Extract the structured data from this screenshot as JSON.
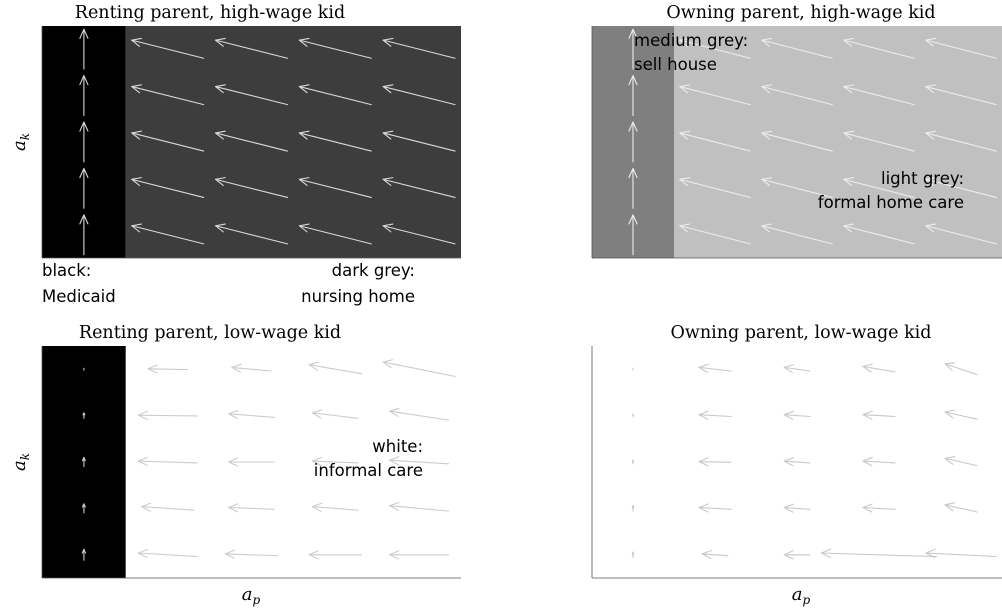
{
  "chart_data": [
    {
      "type": "quiver",
      "title": "Renting parent, high-wage kid",
      "xlabel": "",
      "ylabel": "a_k",
      "ylabel_main": "a",
      "ylabel_sub": "k",
      "regions": [
        {
          "x_from": 0,
          "x_to": 1,
          "color": "#000000"
        },
        {
          "x_from": 1,
          "x_to": 5,
          "color": "#3d3d3d"
        }
      ],
      "arrow_color": "#d9d9d9",
      "columns": [
        0.5,
        1.5,
        2.5,
        3.5,
        4.5,
        5.5
      ],
      "rows": [
        0.5,
        1.5,
        2.5,
        3.5,
        4.5
      ],
      "vectors": [
        [
          [
            0,
            1.1
          ],
          [
            -1.1,
            0.5
          ],
          [
            -1.1,
            0.5
          ],
          [
            -1.1,
            0.5
          ],
          [
            -1.1,
            0.5
          ],
          [
            -0.4,
            0.2
          ]
        ],
        [
          [
            0,
            1.1
          ],
          [
            -1.1,
            0.5
          ],
          [
            -1.1,
            0.5
          ],
          [
            -1.1,
            0.5
          ],
          [
            -1.1,
            0.5
          ],
          [
            -0.4,
            0.2
          ]
        ],
        [
          [
            0,
            1.1
          ],
          [
            -1.1,
            0.5
          ],
          [
            -1.1,
            0.5
          ],
          [
            -1.1,
            0.5
          ],
          [
            -1.1,
            0.5
          ],
          [
            -0.4,
            0.2
          ]
        ],
        [
          [
            0,
            1.1
          ],
          [
            -1.1,
            0.5
          ],
          [
            -1.1,
            0.5
          ],
          [
            -1.1,
            0.5
          ],
          [
            -1.1,
            0.5
          ],
          [
            -0.4,
            0.2
          ]
        ],
        [
          [
            0,
            1.1
          ],
          [
            -1.1,
            0.5
          ],
          [
            -1.1,
            0.5
          ],
          [
            -1.1,
            0.5
          ],
          [
            -1.1,
            0.5
          ],
          [
            -0.4,
            0.2
          ]
        ]
      ],
      "xlim": [
        0,
        5
      ],
      "ylim": [
        0,
        5
      ],
      "grid": false
    },
    {
      "type": "quiver",
      "title": "Owning parent, high-wage kid",
      "xlabel": "",
      "ylabel": "",
      "regions": [
        {
          "x_from": 0,
          "x_to": 1,
          "color": "#7f7f7f"
        },
        {
          "x_from": 1,
          "x_to": 5,
          "color": "#c0c0c0"
        }
      ],
      "arrow_color": "#ececec",
      "columns": [
        0.5,
        1.5,
        2.5,
        3.5,
        4.5,
        5.5
      ],
      "rows": [
        0.5,
        1.5,
        2.5,
        3.5,
        4.5
      ],
      "vectors": [
        [
          [
            0,
            1.1
          ],
          [
            -1.1,
            0.5
          ],
          [
            -1.1,
            0.5
          ],
          [
            -1.1,
            0.5
          ],
          [
            -1.1,
            0.5
          ],
          [
            -0.4,
            0.2
          ]
        ],
        [
          [
            0,
            1.1
          ],
          [
            -1.1,
            0.5
          ],
          [
            -1.1,
            0.5
          ],
          [
            -1.1,
            0.5
          ],
          [
            -1.1,
            0.5
          ],
          [
            -0.4,
            0.2
          ]
        ],
        [
          [
            0,
            1.1
          ],
          [
            -1.1,
            0.5
          ],
          [
            -1.1,
            0.5
          ],
          [
            -1.1,
            0.5
          ],
          [
            -1.1,
            0.5
          ],
          [
            -0.4,
            0.2
          ]
        ],
        [
          [
            0,
            1.1
          ],
          [
            -1.1,
            0.5
          ],
          [
            -1.1,
            0.5
          ],
          [
            -1.1,
            0.5
          ],
          [
            -1.1,
            0.5
          ],
          [
            -0.4,
            0.2
          ]
        ],
        [
          [
            0,
            1.1
          ],
          [
            -1.1,
            0.5
          ],
          [
            -1.1,
            0.5
          ],
          [
            -1.1,
            0.5
          ],
          [
            -1.1,
            0.5
          ],
          [
            -0.4,
            0.2
          ]
        ]
      ],
      "annotations": [
        {
          "lines": [
            "medium grey:",
            "sell house"
          ],
          "color": "#000000",
          "anchor": "start",
          "position": "top-left"
        },
        {
          "lines": [
            "light grey:",
            "formal home care"
          ],
          "color": "#000000",
          "anchor": "end",
          "position": "right"
        }
      ],
      "xlim": [
        0,
        5
      ],
      "ylim": [
        0,
        5
      ],
      "grid": false
    },
    {
      "type": "quiver",
      "title": "Renting parent, low-wage kid",
      "xlabel": "a_p",
      "xlabel_main": "a",
      "xlabel_sub": "p",
      "ylabel": "a_k",
      "ylabel_main": "a",
      "ylabel_sub": "k",
      "regions": [
        {
          "x_from": 0,
          "x_to": 1,
          "color": "#000000"
        },
        {
          "x_from": 1,
          "x_to": 5,
          "color": "#ffffff"
        }
      ],
      "arrow_color": "#cccccc",
      "columns": [
        0.5,
        1.5,
        2.5,
        3.5,
        4.5,
        5.5
      ],
      "rows": [
        0.5,
        1.5,
        2.5,
        3.5,
        4.5
      ],
      "vectors": [
        [
          [
            0,
            0.3
          ],
          [
            -0.9,
            0.1
          ],
          [
            -0.8,
            0.05
          ],
          [
            -0.8,
            0.0
          ],
          [
            -0.9,
            0.0
          ],
          [
            -0.3,
            0.0
          ]
        ],
        [
          [
            0,
            0.25
          ],
          [
            -0.8,
            0.1
          ],
          [
            -0.7,
            0.05
          ],
          [
            -0.7,
            0.1
          ],
          [
            -0.9,
            0.15
          ],
          [
            -0.3,
            0.15
          ]
        ],
        [
          [
            0,
            0.25
          ],
          [
            -0.9,
            0.05
          ],
          [
            -0.7,
            0.0
          ],
          [
            -0.7,
            0.05
          ],
          [
            -0.9,
            0.1
          ],
          [
            -0.3,
            0.1
          ]
        ],
        [
          [
            0,
            0.15
          ],
          [
            -0.9,
            0.02
          ],
          [
            -0.7,
            0.1
          ],
          [
            -0.7,
            0.15
          ],
          [
            -0.9,
            0.25
          ],
          [
            -0.3,
            0.25
          ]
        ],
        [
          [
            0,
            0.05
          ],
          [
            -0.6,
            0.02
          ],
          [
            -0.6,
            0.1
          ],
          [
            -0.8,
            0.25
          ],
          [
            -1.1,
            0.4
          ],
          [
            -0.3,
            0.3
          ]
        ]
      ],
      "annotations": [
        {
          "lines": [
            "white:",
            "informal care"
          ],
          "color": "#000000",
          "anchor": "end",
          "position": "right"
        }
      ],
      "xlim": [
        0,
        5
      ],
      "ylim": [
        0,
        5
      ],
      "grid": false
    },
    {
      "type": "quiver",
      "title": "Owning parent, low-wage kid",
      "xlabel": "a_p",
      "xlabel_main": "a",
      "xlabel_sub": "p",
      "ylabel": "",
      "regions": [
        {
          "x_from": 0,
          "x_to": 5,
          "color": "#ffffff"
        }
      ],
      "arrow_color": "#c8c8c8",
      "columns": [
        0.5,
        1.5,
        2.5,
        3.5,
        4.5
      ],
      "rows": [
        0.5,
        1.5,
        2.5,
        3.5,
        4.5
      ],
      "vectors": [
        [
          [
            0,
            0.15
          ],
          [
            -0.4,
            0.05
          ],
          [
            -0.4,
            0.0
          ],
          [
            -1.8,
            0.1
          ],
          [
            -1.1,
            0.1
          ]
        ],
        [
          [
            0,
            0.15
          ],
          [
            -0.5,
            0.05
          ],
          [
            -0.4,
            0.05
          ],
          [
            -0.5,
            0.05
          ],
          [
            -0.5,
            0.2
          ]
        ],
        [
          [
            0,
            0.1
          ],
          [
            -0.5,
            0.02
          ],
          [
            -0.4,
            0.05
          ],
          [
            -0.5,
            0.05
          ],
          [
            -0.5,
            0.2
          ]
        ],
        [
          [
            0,
            0.07
          ],
          [
            -0.5,
            0.05
          ],
          [
            -0.4,
            0.05
          ],
          [
            -0.5,
            0.05
          ],
          [
            -0.5,
            0.2
          ]
        ],
        [
          [
            0,
            0.05
          ],
          [
            -0.5,
            0.1
          ],
          [
            -0.4,
            0.1
          ],
          [
            -0.5,
            0.15
          ],
          [
            -0.5,
            0.3
          ]
        ]
      ],
      "xlim": [
        0,
        5
      ],
      "ylim": [
        0,
        5
      ],
      "grid": false
    }
  ],
  "legend": {
    "black": {
      "label": "black:",
      "meaning": "Medicaid"
    },
    "dark_grey": {
      "label": "dark grey:",
      "meaning": "nursing home"
    }
  }
}
